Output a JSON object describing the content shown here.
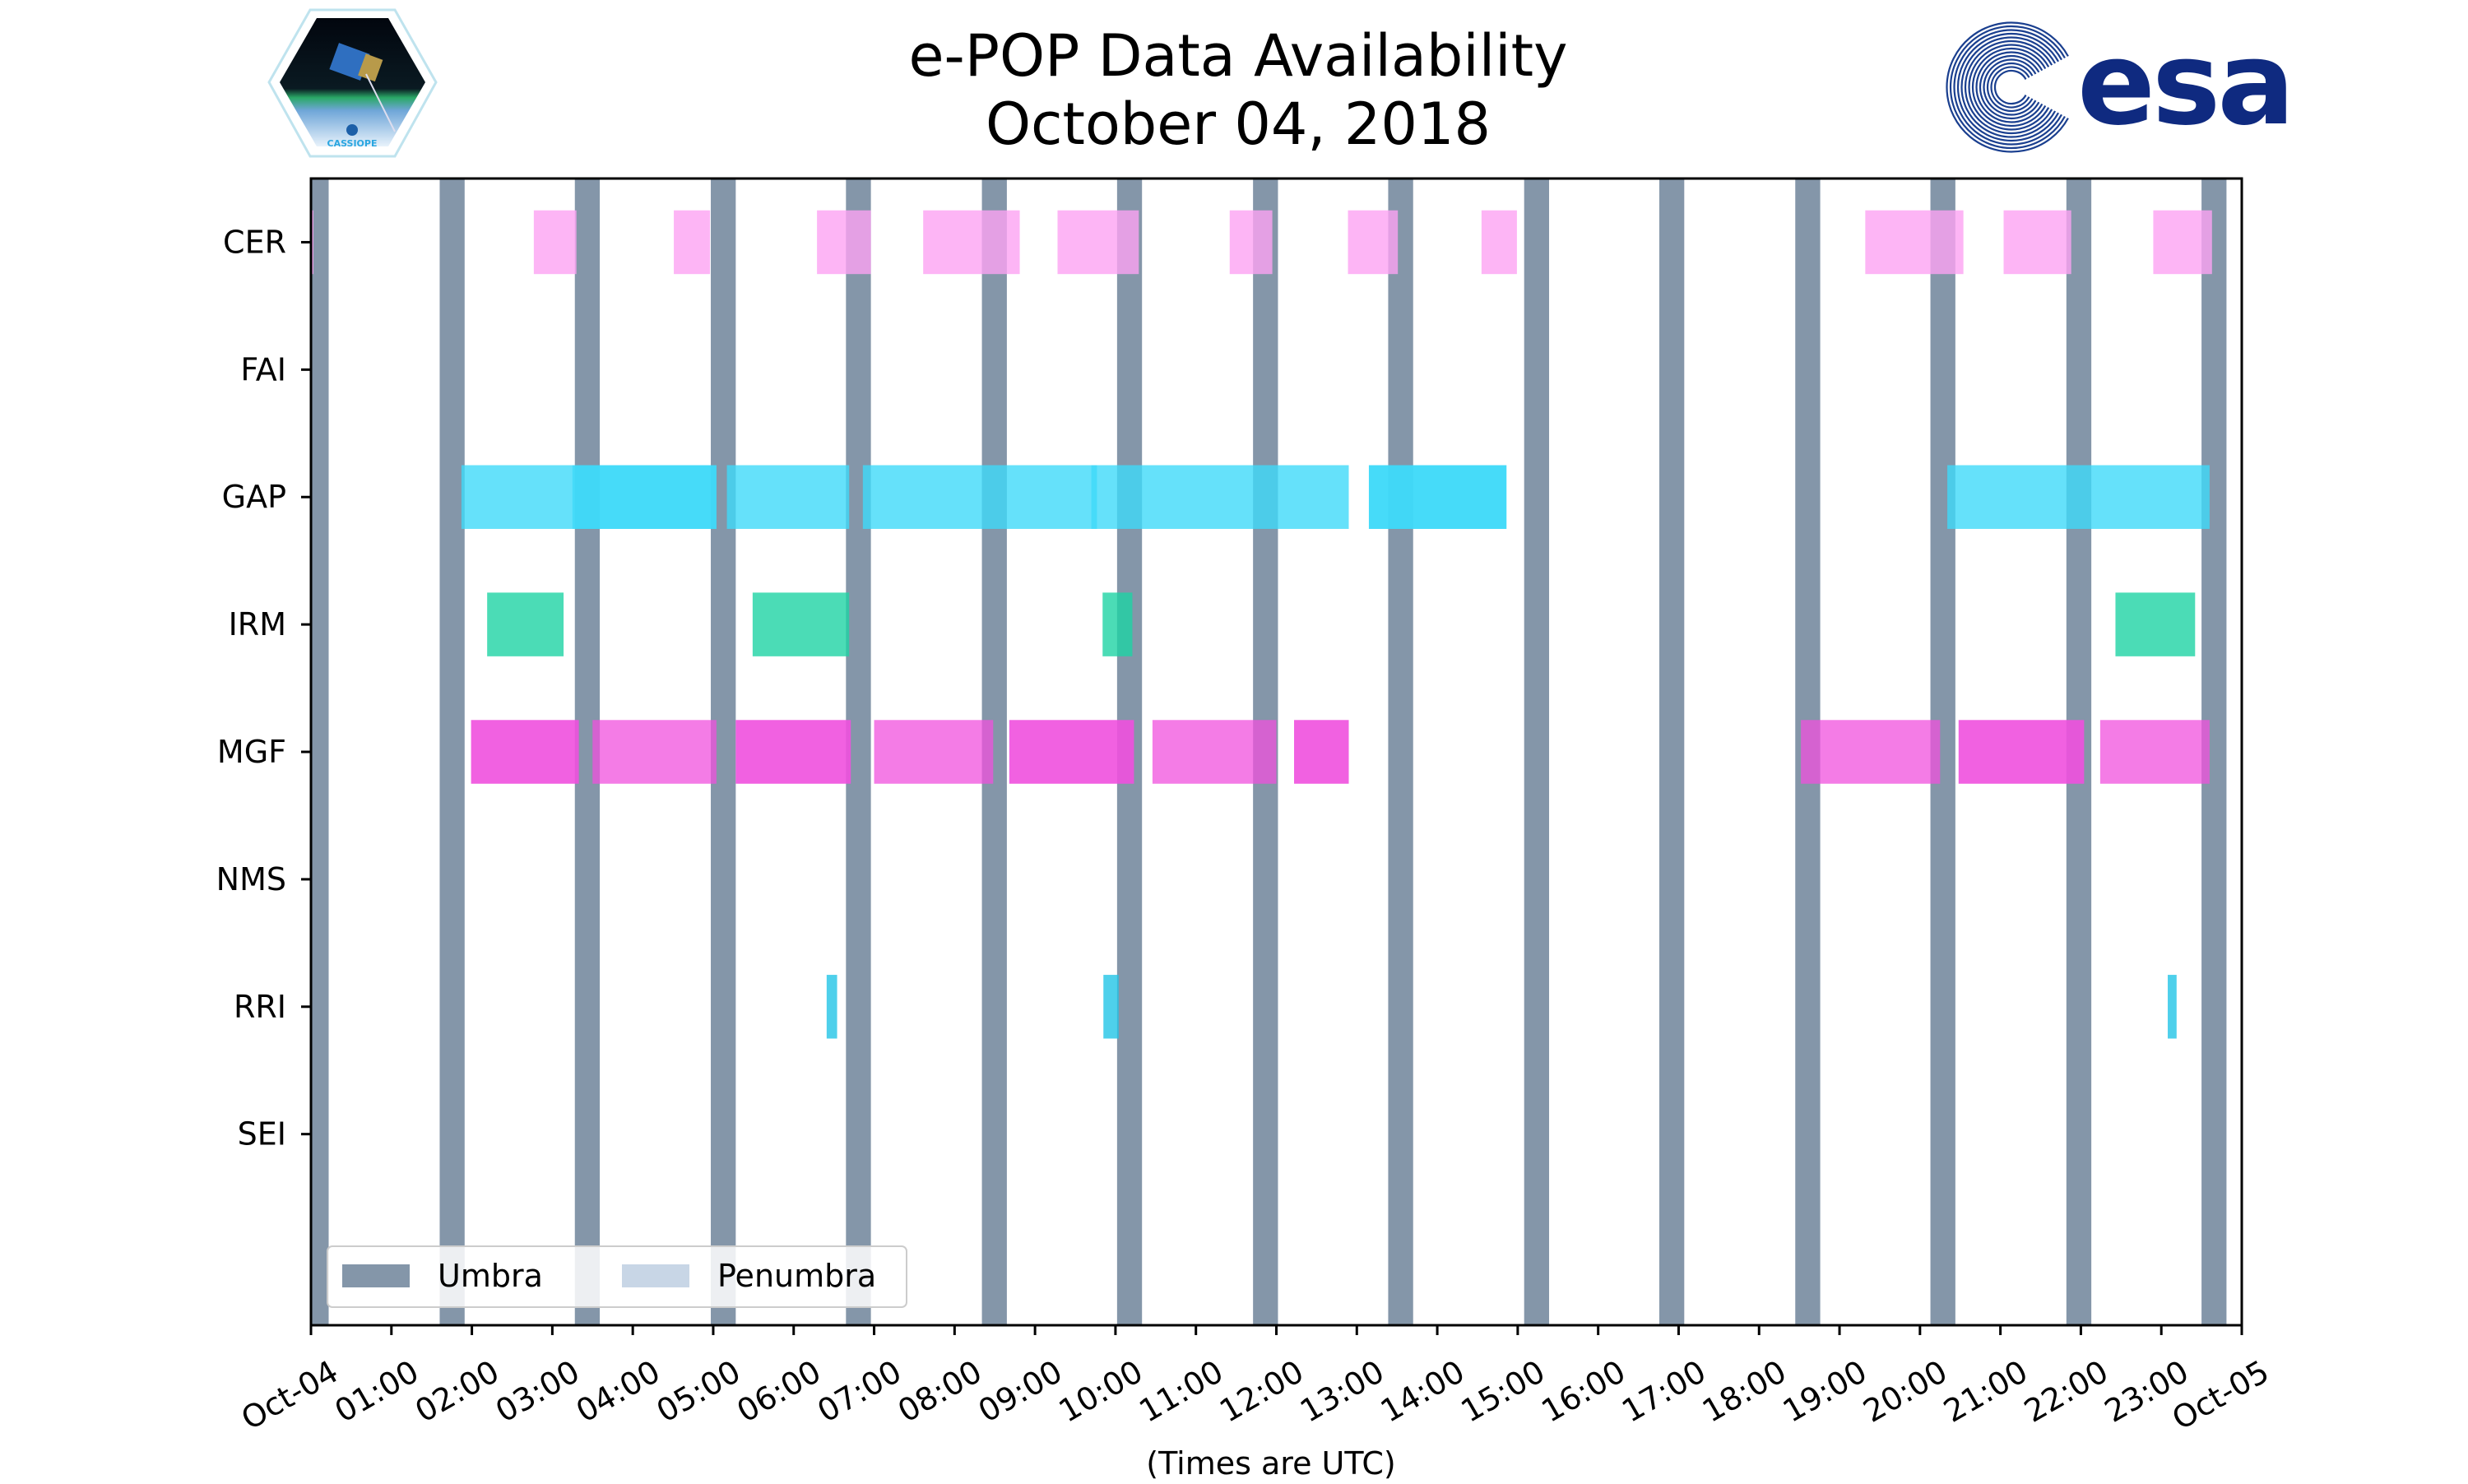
{
  "chart_data": {
    "type": "timeline",
    "title": "e-POP Data Availability",
    "subtitle": "October 04, 2018",
    "xlabel": "(Times are UTC)",
    "xlim_hours": [
      0,
      24
    ],
    "x_tick_labels": [
      "Oct-04",
      "01:00",
      "02:00",
      "03:00",
      "04:00",
      "05:00",
      "06:00",
      "07:00",
      "08:00",
      "09:00",
      "10:00",
      "11:00",
      "12:00",
      "13:00",
      "14:00",
      "15:00",
      "16:00",
      "17:00",
      "18:00",
      "19:00",
      "20:00",
      "21:00",
      "22:00",
      "23:00",
      "Oct-05"
    ],
    "categories": [
      "CER",
      "FAI",
      "GAP",
      "IRM",
      "MGF",
      "NMS",
      "RRI",
      "SEI"
    ],
    "ylim": [
      -0.5,
      8.5
    ],
    "legend": {
      "position": "lower-left",
      "entries": [
        {
          "label": "Umbra",
          "color": "#8496a9"
        },
        {
          "label": "Penumbra",
          "color": "#c8d6e6"
        }
      ]
    },
    "umbra_hours": [
      [
        0,
        0.22
      ],
      [
        1.6,
        1.91
      ],
      [
        3.28,
        3.59
      ],
      [
        4.97,
        5.28
      ],
      [
        6.65,
        6.96
      ],
      [
        8.34,
        8.65
      ],
      [
        10.02,
        10.33
      ],
      [
        11.71,
        12.02
      ],
      [
        13.39,
        13.7
      ],
      [
        15.08,
        15.39
      ],
      [
        16.76,
        17.07
      ],
      [
        18.45,
        18.76
      ],
      [
        20.13,
        20.44
      ],
      [
        21.82,
        22.13
      ],
      [
        23.5,
        23.81
      ]
    ],
    "series": [
      {
        "name": "CER",
        "color": "#fda2f2",
        "intervals": [
          [
            0,
            0.03
          ],
          [
            2.77,
            3.3
          ],
          [
            4.51,
            4.96
          ],
          [
            6.29,
            6.96
          ],
          [
            7.61,
            8.81
          ],
          [
            9.28,
            10.29
          ],
          [
            11.42,
            11.95
          ],
          [
            12.89,
            13.51
          ],
          [
            14.55,
            14.99
          ],
          [
            19.32,
            20.54
          ],
          [
            21.04,
            21.88
          ],
          [
            22.9,
            23.63
          ]
        ]
      },
      {
        "name": "FAI",
        "color": "#fda2f2",
        "intervals": []
      },
      {
        "name": "GAP",
        "color": "#3fd9f9",
        "intervals": [
          [
            1.87,
            5.04
          ],
          [
            3.25,
            5.04
          ],
          [
            5.17,
            6.69
          ],
          [
            6.86,
            9.77
          ],
          [
            9.7,
            12.9
          ],
          [
            13.15,
            14.86
          ],
          [
            13.15,
            14.86
          ],
          [
            20.34,
            23.6
          ]
        ]
      },
      {
        "name": "IRM",
        "color": "#1ed3a4",
        "intervals": [
          [
            2.19,
            3.14
          ],
          [
            5.49,
            6.69
          ],
          [
            9.84,
            10.21
          ],
          [
            22.43,
            23.42
          ]
        ]
      },
      {
        "name": "MGF",
        "color": "#f050de",
        "intervals": [
          [
            1.99,
            3.33
          ],
          [
            3.5,
            5.04
          ],
          [
            5.28,
            6.71
          ],
          [
            7.0,
            8.48
          ],
          [
            8.68,
            10.23
          ],
          [
            10.46,
            12.0
          ],
          [
            12.22,
            12.9
          ],
          [
            18.52,
            20.25
          ],
          [
            20.48,
            22.04
          ],
          [
            22.24,
            23.6
          ]
        ]
      },
      {
        "name": "NMS",
        "color": "#f050de",
        "intervals": []
      },
      {
        "name": "RRI",
        "color": "#22c4e6",
        "intervals": [
          [
            6.41,
            6.54
          ],
          [
            9.85,
            10.04
          ],
          [
            23.08,
            23.19
          ]
        ]
      },
      {
        "name": "SEI",
        "color": "#22c4e6",
        "intervals": []
      }
    ]
  },
  "logos": {
    "left": "CASSIOPE",
    "right": "esa"
  }
}
